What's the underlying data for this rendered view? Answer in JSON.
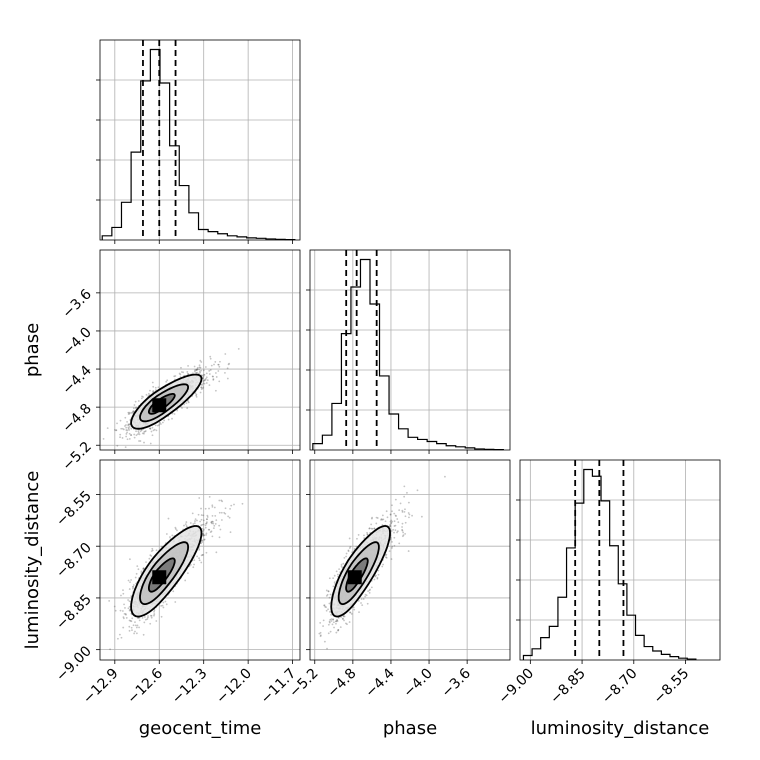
{
  "chart_data": {
    "type": "corner",
    "parameters": [
      "geocent_time",
      "phase",
      "luminosity_distance"
    ],
    "axes": {
      "geocent_time": {
        "label": "geocent_time",
        "range": [
          -13.0,
          -11.65
        ],
        "ticks": [
          -12.9,
          -12.6,
          -12.3,
          -12.0,
          -11.7
        ],
        "tick_labels": [
          "−12.9",
          "−12.6",
          "−12.3",
          "−12.0",
          "−11.7"
        ]
      },
      "phase": {
        "label": "phase",
        "range": [
          -5.25,
          -3.15
        ],
        "ticks": [
          -5.2,
          -4.8,
          -4.4,
          -4.0,
          -3.6
        ],
        "tick_labels": [
          "−5.2",
          "−4.8",
          "−4.4",
          "−4.0",
          "−3.6"
        ]
      },
      "luminosity_distance": {
        "label": "luminosity_distance",
        "range": [
          -9.03,
          -8.45
        ],
        "ticks": [
          -9.0,
          -8.85,
          -8.7,
          -8.55
        ],
        "tick_labels": [
          "−9.00",
          "−8.85",
          "−8.70",
          "−8.55"
        ]
      }
    },
    "histograms": [
      {
        "parameter": "geocent_time",
        "bin_edges": [
          -12.985,
          -12.92,
          -12.855,
          -12.79,
          -12.725,
          -12.66,
          -12.595,
          -12.53,
          -12.465,
          -12.4,
          -12.335,
          -12.27,
          -12.205,
          -12.14,
          -12.075,
          -12.01,
          -11.945,
          -11.88,
          -11.815,
          -11.75,
          -11.685
        ],
        "counts": [
          0.02,
          0.06,
          0.18,
          0.42,
          0.76,
          0.91,
          0.75,
          0.45,
          0.26,
          0.13,
          0.05,
          0.04,
          0.03,
          0.02,
          0.015,
          0.01,
          0.008,
          0.005,
          0.003,
          0.002
        ],
        "quantiles": [
          -12.71,
          -12.6,
          -12.49
        ]
      },
      {
        "parameter": "phase",
        "bin_edges": [
          -5.22,
          -5.12,
          -5.02,
          -4.92,
          -4.82,
          -4.72,
          -4.62,
          -4.52,
          -4.42,
          -4.32,
          -4.22,
          -4.12,
          -4.02,
          -3.92,
          -3.82,
          -3.72,
          -3.62,
          -3.52,
          -3.42,
          -3.32,
          -3.22
        ],
        "counts": [
          0.03,
          0.07,
          0.22,
          0.55,
          0.77,
          0.9,
          0.69,
          0.35,
          0.17,
          0.1,
          0.06,
          0.05,
          0.04,
          0.03,
          0.02,
          0.015,
          0.01,
          0.005,
          0.003,
          0.002
        ],
        "quantiles": [
          -4.87,
          -4.76,
          -4.55
        ]
      },
      {
        "parameter": "luminosity_distance",
        "bin_edges": [
          -9.02,
          -8.995,
          -8.97,
          -8.945,
          -8.92,
          -8.895,
          -8.87,
          -8.845,
          -8.82,
          -8.795,
          -8.77,
          -8.745,
          -8.72,
          -8.695,
          -8.67,
          -8.645,
          -8.62,
          -8.595,
          -8.57,
          -8.545,
          -8.52
        ],
        "counts": [
          0.02,
          0.05,
          0.1,
          0.15,
          0.28,
          0.5,
          0.7,
          0.85,
          0.82,
          0.71,
          0.51,
          0.34,
          0.2,
          0.11,
          0.06,
          0.04,
          0.025,
          0.015,
          0.008,
          0.004
        ],
        "quantiles": [
          -8.87,
          -8.8,
          -8.73
        ]
      }
    ],
    "panels_2d": [
      {
        "x": "geocent_time",
        "y": "phase",
        "mean": [
          -12.6,
          -4.78
        ],
        "std": [
          0.1,
          0.13
        ],
        "corr": 0.75
      },
      {
        "x": "geocent_time",
        "y": "luminosity_distance",
        "mean": [
          -12.6,
          -8.79
        ],
        "std": [
          0.1,
          0.06
        ],
        "corr": 0.75
      },
      {
        "x": "phase",
        "y": "luminosity_distance",
        "mean": [
          -4.78,
          -8.79
        ],
        "std": [
          0.13,
          0.06
        ],
        "corr": 0.75
      }
    ],
    "grid": true,
    "contour_levels": 3
  }
}
